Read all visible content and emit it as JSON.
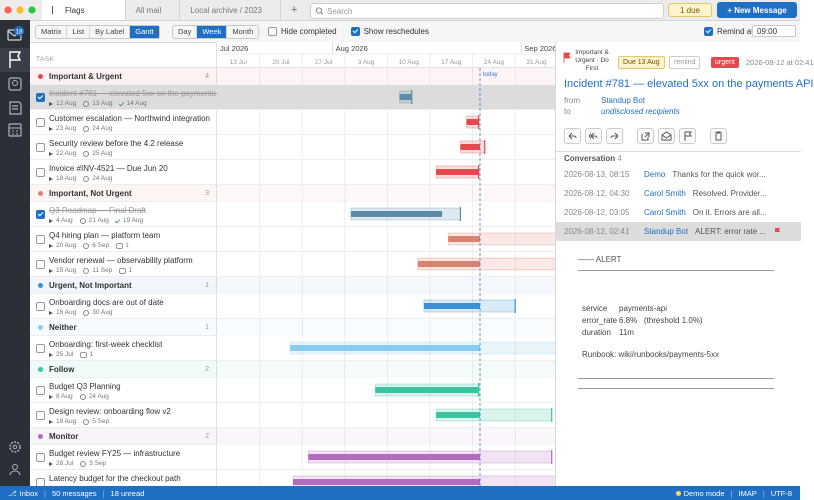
{
  "sidebar": {
    "mail_badge": 18
  },
  "tabs": [
    "Flags",
    "All mail",
    "Local archive / 2023"
  ],
  "search_placeholder": "Search",
  "due_button": "1 due",
  "new_message_button": "+ New Message",
  "views": [
    "Matrix",
    "List",
    "By Label",
    "Gantt"
  ],
  "active_view": 3,
  "ranges": [
    "Day",
    "Week",
    "Month"
  ],
  "active_range": 1,
  "options": [
    {
      "label": "Hide completed",
      "checked": false
    },
    {
      "label": "Show reschedules",
      "checked": true
    }
  ],
  "remind": {
    "label": "Remind at",
    "checked": true,
    "time": "09:00"
  },
  "gantt": {
    "task_header": "TASK",
    "months": [
      "Jul 2026",
      "Aug 2026",
      "Sep 2026"
    ],
    "weeks": [
      "13 Jul",
      "20 Jul",
      "27 Jul",
      "3 Aug",
      "10 Aug",
      "17 Aug",
      "24 Aug",
      "31 Aug"
    ],
    "today_label": "today",
    "groups": [
      {
        "name": "Important & Urgent",
        "count": 4,
        "color": "#e5484d",
        "tasks": [
          {
            "title": "Incident #781 — elevated 5xx on the payments API",
            "done": true,
            "selected": true,
            "start": "12 Aug",
            "due": "13 Aug",
            "completed": "14 Aug"
          },
          {
            "title": "Customer escalation — Northwind integration",
            "done": false,
            "start": "23 Aug",
            "due": "24 Aug"
          },
          {
            "title": "Security review before the 4.2 release",
            "done": false,
            "start": "22 Aug",
            "due": "25 Aug"
          },
          {
            "title": "Invoice #INV-4521 — Due Jun 20",
            "done": false,
            "start": "18 Aug",
            "due": "24 Aug"
          }
        ]
      },
      {
        "name": "Important, Not Urgent",
        "count": 3,
        "color": "#d9826f",
        "tasks": [
          {
            "title": "Q3 Roadmap — Final Draft",
            "done": true,
            "start": "4 Aug",
            "due": "21 Aug",
            "completed": "19 Aug"
          },
          {
            "title": "Q4 hiring plan — platform team",
            "done": false,
            "start": "20 Aug",
            "due": "6 Sep",
            "comments": 1
          },
          {
            "title": "Vendor renewal — observability platform",
            "done": false,
            "start": "15 Aug",
            "due": "11 Sep",
            "comments": 1
          }
        ]
      },
      {
        "name": "Urgent, Not Important",
        "count": 1,
        "color": "#3d8fd6",
        "tasks": [
          {
            "title": "Onboarding docs are out of date",
            "done": false,
            "start": "16 Aug",
            "due": "30 Aug"
          }
        ]
      },
      {
        "name": "Neither",
        "count": 1,
        "color": "#86cdf0",
        "tasks": [
          {
            "title": "Onboarding: first-week checklist",
            "done": false,
            "start": "25 Jul",
            "comments": 1
          }
        ]
      },
      {
        "name": "Follow",
        "count": 2,
        "color": "#3cc3a0",
        "tasks": [
          {
            "title": "Budget Q3 Planning",
            "done": false,
            "start": "8 Aug",
            "due": "24 Aug"
          },
          {
            "title": "Design review: onboarding flow v2",
            "done": false,
            "start": "18 Aug",
            "due": "5 Sep"
          }
        ]
      },
      {
        "name": "Monitor",
        "count": 2,
        "color": "#b36bbd",
        "tasks": [
          {
            "title": "Budget review FY25 — infrastructure",
            "done": false,
            "start": "28 Jul",
            "due": "5 Sep"
          },
          {
            "title": "Latency budget for the checkout path",
            "done": false
          }
        ]
      }
    ]
  },
  "detail": {
    "category": "Important & Urgent · Do First",
    "due_badge": "Due 13 Aug",
    "remind_badge": "remind",
    "label_badge": "urgent",
    "timestamp": "2026-08-12 at 02:41",
    "title": "Incident #781 — elevated 5xx on the payments API",
    "from_label": "from",
    "from": "Standup Bot",
    "to_label": "to",
    "to": "undisclosed recipients",
    "conversation_label": "Conversation",
    "conversation_count": 4,
    "messages": [
      {
        "date": "2026-08-13, 08:15",
        "sender": "Demo",
        "snippet": "Thanks for the quick wor..."
      },
      {
        "date": "2026-08-12, 04:30",
        "sender": "Carol Smith",
        "snippet": "Resolved. Provider..."
      },
      {
        "date": "2026-08-12, 03:05",
        "sender": "Carol Smith",
        "snippet": "On it. Errors are all..."
      },
      {
        "date": "2026-08-12, 02:41",
        "sender": "Standup Bot",
        "snippet": "ALERT: error rate ...",
        "selected": true,
        "flagged": true
      }
    ],
    "body": {
      "heading": "—— ALERT",
      "fields": [
        [
          "service",
          "payments-api"
        ],
        [
          "error_rate",
          "6.8%   (threshold 1.0%)"
        ],
        [
          "duration",
          "11m"
        ]
      ],
      "runbook": "Runbook: wiki/runbooks/payments-5xx"
    }
  },
  "status": {
    "folder": "Inbox",
    "messages": "50 messages",
    "unread": "18 unread",
    "mode": "Demo mode",
    "protocol": "IMAP",
    "encoding": "UTF-8"
  }
}
